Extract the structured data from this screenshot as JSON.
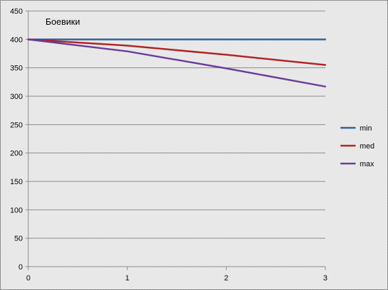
{
  "chart_data": {
    "type": "line",
    "title": "Боевики",
    "xlabel": "",
    "ylabel": "",
    "x": [
      0,
      1,
      2,
      3
    ],
    "xticks": [
      0,
      1,
      2,
      3
    ],
    "xlim": [
      0,
      3
    ],
    "ylim": [
      0,
      450
    ],
    "yticks": [
      0,
      50,
      100,
      150,
      200,
      250,
      300,
      350,
      400,
      450
    ],
    "grid": true,
    "legend_position": "right",
    "series": [
      {
        "name": "min",
        "values": [
          400,
          400,
          400,
          400
        ],
        "color": "#2e5f9e"
      },
      {
        "name": "med",
        "values": [
          400,
          389,
          373,
          355
        ],
        "color": "#b22222"
      },
      {
        "name": "max",
        "values": [
          400,
          379,
          349,
          317
        ],
        "color": "#6a3d9a"
      }
    ]
  }
}
